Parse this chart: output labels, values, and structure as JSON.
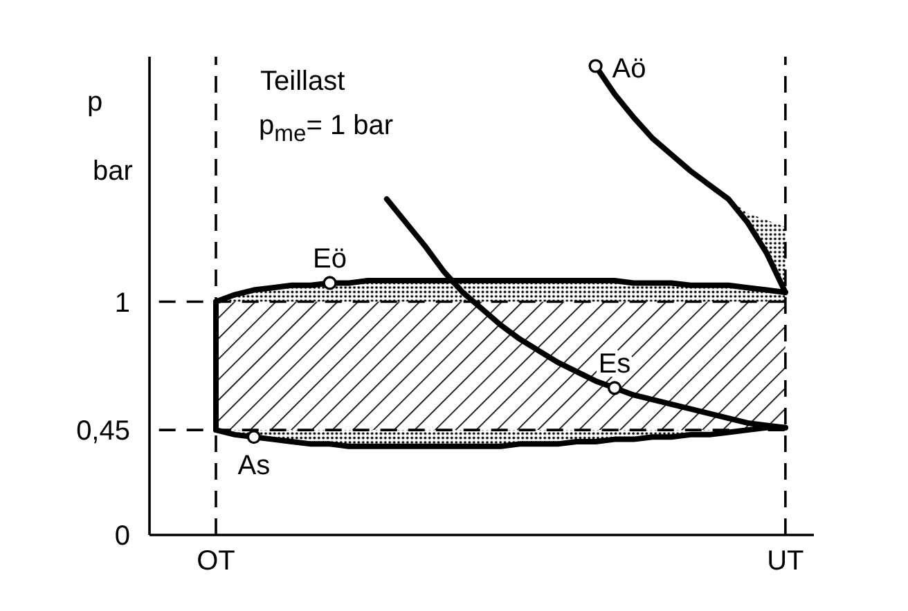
{
  "chart_data": {
    "type": "line",
    "title": "Teillast",
    "subtitle": "p$_{me}$= 1 bar",
    "ylabel": "p\nbar",
    "categories": [
      null,
      null,
      null,
      "OT",
      null,
      null,
      null,
      null,
      null,
      null,
      null,
      null,
      null,
      null,
      null,
      null,
      null,
      null,
      null,
      null,
      null,
      null,
      null,
      null,
      null,
      null,
      null,
      null,
      null,
      null,
      null,
      null,
      null,
      "UT",
      null
    ],
    "ylim": [
      0,
      2.05
    ],
    "yticks": [
      0,
      {
        "value": 0.45,
        "label": "0,45"
      },
      1
    ],
    "marker": "none",
    "line_style": "solid",
    "series": [
      {
        "color": "#000000",
        "line_style": "dashed",
        "values": [
          1,
          1,
          1,
          1,
          1,
          1,
          1,
          1,
          1,
          1,
          1,
          1,
          1,
          1,
          1,
          1,
          1,
          1,
          1,
          1,
          1,
          1,
          1,
          1,
          1,
          1,
          1,
          1,
          1,
          1,
          1,
          1,
          1,
          1,
          null
        ],
        "lower": [
          null,
          null,
          null,
          0.45,
          0.45,
          0.45,
          0.45,
          0.45,
          0.45,
          0.45,
          0.45,
          0.45,
          0.45,
          0.45,
          0.45,
          0.45,
          0.45,
          0.45,
          0.45,
          0.45,
          0.45,
          0.45,
          0.45,
          0.45,
          0.45,
          0.45,
          0.45,
          0.45,
          0.45,
          0.45,
          0.45,
          0.45,
          0.45,
          0.45,
          null
        ],
        "upper": [
          null,
          null,
          null,
          1,
          1,
          1,
          1,
          1,
          1,
          1,
          1,
          1,
          1,
          1,
          1,
          1,
          1,
          1,
          1,
          1,
          1,
          1,
          1,
          1,
          1,
          1,
          1,
          1,
          1,
          1,
          1,
          1,
          1,
          1,
          null
        ]
      },
      {
        "color": "#000000",
        "line_style": "dashed",
        "values": [
          0.45,
          0.45,
          0.45,
          0.45,
          0.45,
          0.45,
          0.45,
          0.45,
          0.45,
          0.45,
          0.45,
          0.45,
          0.45,
          0.45,
          0.45,
          0.45,
          0.45,
          0.45,
          0.45,
          0.45,
          0.45,
          0.45,
          0.45,
          0.45,
          0.45,
          0.45,
          0.45,
          0.45,
          0.45,
          0.45,
          0.45,
          0.45,
          0.45,
          0.45,
          null
        ]
      },
      {
        "color": "#000000",
        "x": [
          "OT",
          "OT"
        ],
        "values": [
          0.45,
          1
        ]
      },
      {
        "color": "#000000",
        "values": [
          null,
          null,
          null,
          1,
          1.03,
          1.05,
          1.06,
          1.07,
          1.07,
          1.08,
          1.08,
          1.09,
          1.09,
          1.09,
          1.09,
          1.09,
          1.09,
          1.09,
          1.09,
          1.09,
          1.09,
          1.09,
          1.09,
          1.09,
          1.09,
          1.08,
          1.08,
          1.08,
          1.07,
          1.07,
          1.07,
          1.06,
          1.05,
          1.04,
          null
        ],
        "lower": [
          null,
          null,
          null,
          1,
          1,
          1,
          1,
          1,
          1,
          1,
          1,
          1,
          1,
          1,
          1,
          1,
          1,
          1,
          1,
          1,
          1,
          1,
          1,
          1,
          1,
          1,
          1,
          1,
          1,
          1,
          1,
          1,
          1,
          1,
          null
        ],
        "upper": [
          null,
          null,
          null,
          1,
          1.03,
          1.05,
          1.06,
          1.07,
          1.07,
          1.08,
          1.08,
          1.09,
          1.09,
          1.09,
          1.09,
          1.09,
          1.09,
          1.09,
          1.09,
          1.09,
          1.09,
          1.09,
          1.09,
          1.09,
          1.09,
          1.08,
          1.08,
          1.08,
          1.07,
          1.07,
          1.07,
          1.06,
          1.05,
          1.04,
          null
        ]
      },
      {
        "color": "#000000",
        "values": [
          null,
          null,
          null,
          0.45,
          0.43,
          0.42,
          0.41,
          0.4,
          0.39,
          0.39,
          0.38,
          0.38,
          0.38,
          0.38,
          0.38,
          0.38,
          0.38,
          0.38,
          0.38,
          0.39,
          0.39,
          0.39,
          0.4,
          0.4,
          0.41,
          0.41,
          0.42,
          0.42,
          0.43,
          0.43,
          0.44,
          0.45,
          0.46,
          0.46,
          null
        ],
        "lower": [
          null,
          null,
          null,
          0.45,
          0.43,
          0.42,
          0.41,
          0.4,
          0.39,
          0.39,
          0.38,
          0.38,
          0.38,
          0.38,
          0.38,
          0.38,
          0.38,
          0.38,
          0.38,
          0.39,
          0.39,
          0.39,
          0.4,
          0.4,
          0.41,
          0.41,
          0.42,
          0.42,
          0.43,
          0.43,
          0.44,
          0.45,
          0.46,
          0.46,
          null
        ],
        "upper": [
          null,
          null,
          null,
          0.45,
          0.45,
          0.45,
          0.45,
          0.45,
          0.45,
          0.45,
          0.45,
          0.45,
          0.45,
          0.45,
          0.45,
          0.45,
          0.45,
          0.45,
          0.45,
          0.45,
          0.45,
          0.45,
          0.45,
          0.45,
          0.45,
          0.45,
          0.45,
          0.45,
          0.45,
          0.45,
          0.45,
          0.45,
          0.45,
          0.45,
          null
        ]
      },
      {
        "color": "#000000",
        "values": [
          null,
          null,
          null,
          null,
          null,
          null,
          null,
          null,
          null,
          null,
          null,
          null,
          1.44,
          1.34,
          1.24,
          1.13,
          1.04,
          0.97,
          0.9,
          0.84,
          0.79,
          0.74,
          0.7,
          0.66,
          0.63,
          0.6,
          0.58,
          0.56,
          0.54,
          0.52,
          0.5,
          0.48,
          0.47,
          0.46,
          null
        ]
      },
      {
        "color": "#000000",
        "values": [
          null,
          null,
          null,
          null,
          null,
          null,
          null,
          null,
          null,
          null,
          null,
          null,
          null,
          null,
          null,
          null,
          null,
          null,
          null,
          null,
          null,
          null,
          null,
          2.01,
          1.89,
          1.79,
          1.7,
          1.63,
          1.56,
          1.5,
          1.44,
          1.34,
          1.21,
          1.04,
          null
        ],
        "lower": [
          null,
          null,
          null,
          null,
          null,
          null,
          null,
          null,
          null,
          null,
          null,
          null,
          null,
          null,
          null,
          null,
          null,
          null,
          null,
          null,
          null,
          null,
          null,
          null,
          null,
          null,
          null,
          null,
          null,
          null,
          1.44,
          1.34,
          1.21,
          1.04,
          null
        ],
        "upper": [
          null,
          null,
          null,
          null,
          null,
          null,
          null,
          null,
          null,
          null,
          null,
          null,
          null,
          null,
          null,
          null,
          null,
          null,
          null,
          null,
          null,
          null,
          null,
          null,
          null,
          null,
          null,
          null,
          null,
          null,
          1.44,
          1.38,
          1.35,
          1.32,
          null
        ]
      },
      {
        "type": "scatter",
        "color": "#000000",
        "marker": "circle",
        "values": [
          null,
          null,
          null,
          null,
          null,
          0.42,
          null,
          null,
          null,
          1.08,
          null,
          null,
          null,
          null,
          null,
          null,
          null,
          null,
          null,
          null,
          null,
          null,
          null,
          2.01,
          0.63,
          null,
          null,
          null,
          null,
          null,
          null,
          null,
          null,
          null,
          null
        ],
        "value_labels": [
          null,
          null,
          null,
          null,
          null,
          "As",
          null,
          null,
          null,
          "Eö",
          null,
          null,
          null,
          null,
          null,
          null,
          null,
          null,
          null,
          null,
          null,
          null,
          null,
          "Aö",
          "Es",
          null,
          null,
          null,
          null,
          null,
          null,
          null,
          null,
          null,
          null
        ]
      }
    ],
    "ref_lines": [
      {
        "axis": "x",
        "value": "OT",
        "line_style": "dashed"
      },
      {
        "axis": "x",
        "value": "UT",
        "line_style": "dashed"
      }
    ]
  }
}
